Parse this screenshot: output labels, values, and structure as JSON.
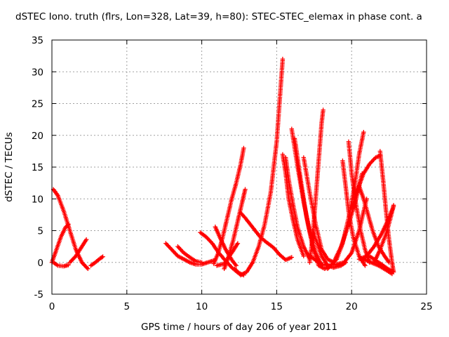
{
  "chart_data": {
    "type": "scatter",
    "title": "dSTEC Iono. truth (flrs, Lon=328, Lat=39, h=80): STEC-STEC_elemax in phase cont. a",
    "xlabel": "GPS time / hours of day 206 of year 2011",
    "ylabel": "dSTEC  / TECUs",
    "xlim": [
      0,
      25
    ],
    "ylim": [
      -5,
      35
    ],
    "xticks": [
      "0",
      "5",
      "10",
      "15",
      "20",
      "25"
    ],
    "yticks": [
      "-5",
      "0",
      "5",
      "10",
      "15",
      "20",
      "25",
      "30",
      "35"
    ],
    "grid": true,
    "marker": "+",
    "color": "#ff0000",
    "series": [
      {
        "x": [
          0.1,
          0.4,
          0.8,
          1.2,
          1.6,
          2.0,
          2.4
        ],
        "y": [
          11.5,
          10.5,
          8.0,
          5.0,
          2.0,
          0.0,
          -1.0
        ]
      },
      {
        "x": [
          0.0,
          0.3,
          0.6,
          0.9,
          1.1
        ],
        "y": [
          0.0,
          2.0,
          4.0,
          5.5,
          6.0
        ]
      },
      {
        "x": [
          0.1,
          0.4,
          0.8,
          1.1
        ],
        "y": [
          0.0,
          -0.5,
          -0.6,
          -0.4
        ]
      },
      {
        "x": [
          1.2,
          1.6,
          2.0,
          2.3
        ],
        "y": [
          0.0,
          1.0,
          2.5,
          3.6
        ]
      },
      {
        "x": [
          2.6,
          2.9,
          3.2,
          3.4
        ],
        "y": [
          -0.5,
          0.0,
          0.6,
          0.9
        ]
      },
      {
        "x": [
          7.6,
          8.0,
          8.4,
          8.8,
          9.2,
          9.6,
          10.0,
          10.4,
          10.8
        ],
        "y": [
          3.0,
          2.0,
          1.0,
          0.5,
          0.0,
          -0.3,
          -0.3,
          0.0,
          0.3
        ]
      },
      {
        "x": [
          8.4,
          8.8,
          9.2,
          9.6,
          10.0
        ],
        "y": [
          2.5,
          1.5,
          0.8,
          0.2,
          0.0
        ]
      },
      {
        "x": [
          9.9,
          10.3,
          10.7,
          11.1,
          11.5,
          12.0,
          12.4,
          12.8
        ],
        "y": [
          4.7,
          4.0,
          3.0,
          1.6,
          0.5,
          -0.8,
          -1.6,
          -2.0
        ]
      },
      {
        "x": [
          10.8,
          11.1,
          11.4,
          11.7,
          12.0,
          12.3,
          12.6,
          12.8
        ],
        "y": [
          -0.2,
          1.5,
          4.0,
          7.0,
          10.0,
          12.5,
          15.5,
          18.0
        ]
      },
      {
        "x": [
          10.9,
          11.2,
          11.6,
          12.0,
          12.3
        ],
        "y": [
          5.6,
          4.0,
          2.0,
          0.4,
          -0.5
        ]
      },
      {
        "x": [
          11.5,
          11.8,
          12.1,
          12.4,
          12.7,
          12.9
        ],
        "y": [
          -1.0,
          1.0,
          3.5,
          6.5,
          9.5,
          11.5
        ]
      },
      {
        "x": [
          11.0,
          11.5,
          12.0,
          12.4
        ],
        "y": [
          -0.5,
          -0.2,
          1.5,
          3.0
        ]
      },
      {
        "x": [
          12.6,
          12.9,
          13.4,
          13.9,
          14.3,
          14.8,
          15.2,
          15.6,
          16.0
        ],
        "y": [
          7.8,
          7.0,
          5.5,
          4.0,
          3.2,
          2.3,
          1.2,
          0.4,
          0.8
        ]
      },
      {
        "x": [
          12.2,
          12.6,
          13.0,
          13.4,
          13.8,
          14.2,
          14.6,
          15.0,
          15.4
        ],
        "y": [
          -1.0,
          -2.0,
          -1.5,
          0.0,
          2.5,
          6.0,
          11.0,
          19.0,
          32.0
        ]
      },
      {
        "x": [
          15.4,
          15.6,
          15.8,
          16.1,
          16.4,
          16.8
        ],
        "y": [
          17.0,
          14.0,
          10.0,
          6.5,
          3.5,
          1.0
        ]
      },
      {
        "x": [
          15.6,
          15.8,
          16.1,
          16.4,
          16.8,
          17.2
        ],
        "y": [
          16.5,
          13.0,
          9.0,
          5.5,
          2.5,
          0.5
        ]
      },
      {
        "x": [
          16.0,
          16.4,
          16.8,
          17.2,
          17.6,
          18.0
        ],
        "y": [
          21.0,
          15.0,
          9.5,
          5.0,
          1.5,
          -0.5
        ]
      },
      {
        "x": [
          16.2,
          16.6,
          17.0,
          17.4,
          17.8,
          18.2,
          18.6
        ],
        "y": [
          19.5,
          13.0,
          7.0,
          2.5,
          -0.5,
          -1.0,
          -0.5
        ]
      },
      {
        "x": [
          16.8,
          17.2,
          17.6,
          18.0,
          18.4,
          18.8,
          19.0
        ],
        "y": [
          16.5,
          11.0,
          6.0,
          2.0,
          0.5,
          0.0,
          0.5
        ]
      },
      {
        "x": [
          17.2,
          17.4,
          17.6,
          17.8,
          18.0,
          18.1
        ],
        "y": [
          0.0,
          4.0,
          10.0,
          16.0,
          22.0,
          24.0
        ]
      },
      {
        "x": [
          17.4,
          17.7,
          18.0,
          18.4,
          18.8,
          19.3,
          19.6
        ],
        "y": [
          5.0,
          3.0,
          1.0,
          -0.5,
          -0.8,
          -0.5,
          0.0
        ]
      },
      {
        "x": [
          17.0,
          17.5,
          18.0,
          18.5,
          19.0,
          19.5,
          20.0,
          20.5,
          21.0
        ],
        "y": [
          1.5,
          0.5,
          -0.3,
          -0.5,
          -0.3,
          0.0,
          1.5,
          5.0,
          10.0
        ]
      },
      {
        "x": [
          19.4,
          19.6,
          19.8,
          20.1,
          20.5,
          20.9
        ],
        "y": [
          16.0,
          12.0,
          8.0,
          4.0,
          1.0,
          -0.5
        ]
      },
      {
        "x": [
          19.8,
          20.0,
          20.3,
          20.6,
          20.9,
          21.2
        ],
        "y": [
          19.0,
          14.0,
          9.0,
          5.0,
          2.0,
          0.0
        ]
      },
      {
        "x": [
          19.0,
          19.4,
          19.8,
          20.2,
          20.5,
          20.8
        ],
        "y": [
          0.5,
          3.0,
          7.0,
          12.0,
          17.0,
          20.5
        ]
      },
      {
        "x": [
          18.4,
          18.8,
          19.3,
          19.8,
          20.3,
          20.7
        ],
        "y": [
          -1.0,
          0.0,
          2.5,
          6.0,
          10.0,
          14.0
        ]
      },
      {
        "x": [
          20.5,
          20.8,
          21.1,
          21.4,
          21.8,
          22.2,
          22.5
        ],
        "y": [
          12.0,
          10.0,
          7.5,
          5.0,
          2.5,
          1.0,
          0.0
        ]
      },
      {
        "x": [
          20.0,
          20.4,
          20.8,
          21.2,
          21.6,
          21.9
        ],
        "y": [
          8.5,
          11.5,
          14.0,
          15.5,
          16.5,
          16.8
        ]
      },
      {
        "x": [
          21.9,
          22.1,
          22.3,
          22.5,
          22.7,
          22.8
        ],
        "y": [
          17.5,
          13.0,
          8.0,
          3.5,
          0.0,
          -1.5
        ]
      },
      {
        "x": [
          20.5,
          21.0,
          21.5,
          22.0,
          22.4,
          22.8
        ],
        "y": [
          0.5,
          1.0,
          2.5,
          4.5,
          6.5,
          8.8
        ]
      },
      {
        "x": [
          21.5,
          21.9,
          22.3,
          22.6,
          22.8
        ],
        "y": [
          0.0,
          2.0,
          4.5,
          7.0,
          9.0
        ]
      },
      {
        "x": [
          20.8,
          21.3,
          21.8,
          22.3,
          22.7
        ],
        "y": [
          0.5,
          0.0,
          -0.5,
          -1.2,
          -1.8
        ]
      },
      {
        "x": [
          21.2,
          21.6,
          22.0,
          22.4,
          22.8
        ],
        "y": [
          1.0,
          0.3,
          -0.3,
          -1.0,
          -1.5
        ]
      }
    ]
  }
}
